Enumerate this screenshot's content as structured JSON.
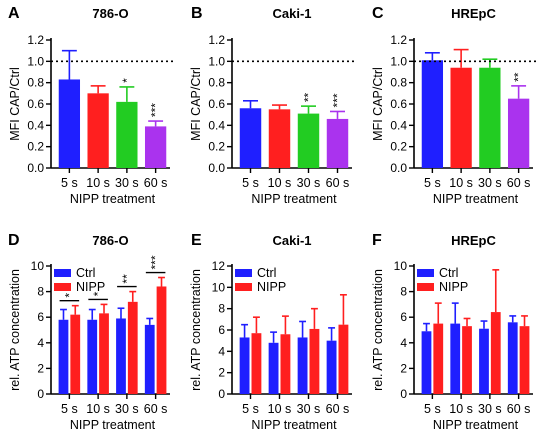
{
  "chart_data": [
    {
      "panel": "A",
      "type": "bar",
      "title": "786-O",
      "xlabel": "NIPP treatment",
      "ylabel": "MFI CAP/Ctrl",
      "ylim": [
        0,
        1.2
      ],
      "yticks": [
        "0.0",
        "0.2",
        "0.4",
        "0.6",
        "0.8",
        "1.0",
        "1.2"
      ],
      "ytick_values": [
        0,
        0.2,
        0.4,
        0.6,
        0.8,
        1.0,
        1.2
      ],
      "reference_line": 1.0,
      "categories": [
        "5 s",
        "10 s",
        "30 s",
        "60 s"
      ],
      "values": [
        0.83,
        0.7,
        0.62,
        0.39
      ],
      "errors": [
        0.27,
        0.07,
        0.14,
        0.05
      ],
      "colors": [
        "#1f1fff",
        "#ff1f1f",
        "#22cc22",
        "#aa33ee"
      ],
      "significance": [
        "",
        "",
        "*",
        "***"
      ]
    },
    {
      "panel": "B",
      "type": "bar",
      "title": "Caki-1",
      "xlabel": "NIPP treatment",
      "ylabel": "MFI CAP/Ctrl",
      "ylim": [
        0,
        1.2
      ],
      "yticks": [
        "0.0",
        "0.2",
        "0.4",
        "0.6",
        "0.8",
        "1.0",
        "1.2"
      ],
      "ytick_values": [
        0,
        0.2,
        0.4,
        0.6,
        0.8,
        1.0,
        1.2
      ],
      "reference_line": 1.0,
      "categories": [
        "5 s",
        "10 s",
        "30 s",
        "60 s"
      ],
      "values": [
        0.56,
        0.55,
        0.51,
        0.46
      ],
      "errors": [
        0.07,
        0.04,
        0.07,
        0.07
      ],
      "colors": [
        "#1f1fff",
        "#ff1f1f",
        "#22cc22",
        "#aa33ee"
      ],
      "significance": [
        "",
        "",
        "**",
        "***"
      ]
    },
    {
      "panel": "C",
      "type": "bar",
      "title": "HREpC",
      "xlabel": "NIPP treatment",
      "ylabel": "MFI CAP/Ctrl",
      "ylim": [
        0,
        1.2
      ],
      "yticks": [
        "0.0",
        "0.2",
        "0.4",
        "0.6",
        "0.8",
        "1.0",
        "1.2"
      ],
      "ytick_values": [
        0,
        0.2,
        0.4,
        0.6,
        0.8,
        1.0,
        1.2
      ],
      "reference_line": 1.0,
      "categories": [
        "5 s",
        "10 s",
        "30 s",
        "60 s"
      ],
      "values": [
        1.01,
        0.94,
        0.94,
        0.65
      ],
      "errors": [
        0.07,
        0.17,
        0.08,
        0.12
      ],
      "colors": [
        "#1f1fff",
        "#ff1f1f",
        "#22cc22",
        "#aa33ee"
      ],
      "significance": [
        "",
        "",
        "",
        "**"
      ]
    },
    {
      "panel": "D",
      "type": "bar",
      "title": "786-O",
      "xlabel": "NIPP treatment",
      "ylabel": "rel. ATP concentration",
      "ylim": [
        0,
        10
      ],
      "yticks": [
        "0",
        "2",
        "4",
        "6",
        "8",
        "10"
      ],
      "ytick_values": [
        0,
        2,
        4,
        6,
        8,
        10
      ],
      "categories": [
        "5 s",
        "10 s",
        "30 s",
        "60 s"
      ],
      "series": [
        {
          "name": "Ctrl",
          "color": "#1f1fff",
          "values": [
            5.8,
            5.8,
            5.9,
            5.4
          ],
          "errors": [
            0.8,
            0.8,
            0.8,
            0.5
          ]
        },
        {
          "name": "NIPP",
          "color": "#ff1f1f",
          "values": [
            6.2,
            6.3,
            7.2,
            8.4
          ],
          "errors": [
            0.7,
            0.7,
            0.8,
            0.7
          ]
        }
      ],
      "significance": [
        "*",
        "*",
        "**",
        "***"
      ]
    },
    {
      "panel": "E",
      "type": "bar",
      "title": "Caki-1",
      "xlabel": "NIPP treatment",
      "ylabel": "rel. ATP concentration",
      "ylim": [
        0,
        12
      ],
      "yticks": [
        "0",
        "2",
        "4",
        "6",
        "8",
        "10",
        "12"
      ],
      "ytick_values": [
        0,
        2,
        4,
        6,
        8,
        10,
        12
      ],
      "categories": [
        "5 s",
        "10 s",
        "30 s",
        "60 s"
      ],
      "series": [
        {
          "name": "Ctrl",
          "color": "#1f1fff",
          "values": [
            5.3,
            4.8,
            5.3,
            5.0
          ],
          "errors": [
            1.2,
            1.0,
            1.5,
            1.2
          ]
        },
        {
          "name": "NIPP",
          "color": "#ff1f1f",
          "values": [
            5.7,
            5.6,
            6.1,
            6.5
          ],
          "errors": [
            1.5,
            1.7,
            1.9,
            2.8
          ]
        }
      ],
      "significance": [
        "",
        "",
        "",
        ""
      ]
    },
    {
      "panel": "F",
      "type": "bar",
      "title": "HREpC",
      "xlabel": "NIPP treatment",
      "ylabel": "rel. ATP concentration",
      "ylim": [
        0,
        10
      ],
      "yticks": [
        "0",
        "2",
        "4",
        "6",
        "8",
        "10"
      ],
      "ytick_values": [
        0,
        2,
        4,
        6,
        8,
        10
      ],
      "categories": [
        "5 s",
        "10 s",
        "30 s",
        "60 s"
      ],
      "series": [
        {
          "name": "Ctrl",
          "color": "#1f1fff",
          "values": [
            4.9,
            5.5,
            5.1,
            5.6
          ],
          "errors": [
            0.6,
            1.6,
            0.6,
            0.5
          ]
        },
        {
          "name": "NIPP",
          "color": "#ff1f1f",
          "values": [
            5.5,
            5.3,
            6.4,
            5.3
          ],
          "errors": [
            1.6,
            0.6,
            3.3,
            0.8
          ]
        }
      ],
      "significance": [
        "",
        "",
        "",
        ""
      ]
    }
  ]
}
